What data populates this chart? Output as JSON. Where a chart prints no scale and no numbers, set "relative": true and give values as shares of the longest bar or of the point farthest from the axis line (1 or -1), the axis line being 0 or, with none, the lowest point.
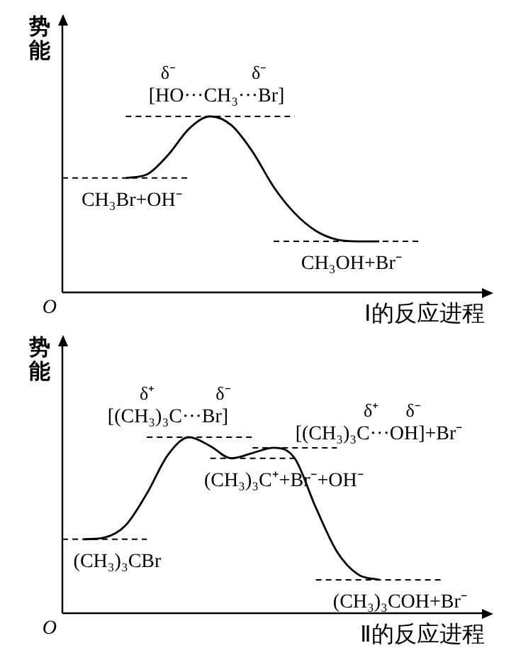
{
  "chart_data": [
    {
      "type": "line",
      "relative": true,
      "ylabel": "势能",
      "xlabel": "Ⅰ的反应进程",
      "categories": [
        null,
        null,
        null,
        null,
        null,
        null,
        null,
        null,
        null,
        null,
        null,
        null,
        null,
        null,
        null,
        null,
        null,
        null,
        null,
        null,
        null
      ],
      "marker": "none",
      "series": [
        {
          "color": "#000000",
          "line_style": "solid",
          "values": [
            null,
            null,
            null,
            0.65,
            0.67,
            0.78,
            0.93,
            1.0,
            0.95,
            0.8,
            0.6,
            0.45,
            0.35,
            0.3,
            0.29,
            0.29,
            null,
            null,
            null,
            null,
            null
          ]
        },
        {
          "color": "#000000",
          "line_style": "dashed",
          "values": [
            0.65,
            0.65,
            0.65,
            0.65,
            0.65,
            0.65,
            0.65,
            null,
            null,
            null,
            null,
            null,
            null,
            null,
            null,
            null,
            null,
            null,
            null,
            null,
            null
          ]
        },
        {
          "color": "#000000",
          "line_style": "dashed",
          "values": [
            null,
            null,
            null,
            1.0,
            1.0,
            1.0,
            1.0,
            1.0,
            1.0,
            1.0,
            1.0,
            1.0,
            null,
            null,
            null,
            null,
            null,
            null,
            null,
            null,
            null
          ]
        },
        {
          "color": "#000000",
          "line_style": "dashed",
          "values": [
            null,
            null,
            null,
            null,
            null,
            null,
            null,
            null,
            null,
            null,
            0.29,
            0.29,
            0.29,
            0.29,
            0.29,
            0.29,
            0.29,
            0.29,
            null,
            null,
            null
          ]
        }
      ],
      "annotations": [
        {
          "text": "δ⁻",
          "y": 1.0
        },
        {
          "text": "δ⁻",
          "y": 1.0
        },
        {
          "text": "[HO···CH₃···Br]",
          "y": 1.0
        },
        {
          "text": "CH₃Br+OH⁻",
          "y": 0.65
        },
        {
          "text": "CH₃OH+Br⁻",
          "y": 0.29
        },
        "O"
      ]
    },
    {
      "type": "line",
      "relative": true,
      "ylabel": "势能",
      "xlabel": "Ⅱ的反应进程",
      "categories": [
        null,
        null,
        null,
        null,
        null,
        null,
        null,
        null,
        null,
        null,
        null,
        null,
        null,
        null,
        null,
        null,
        null,
        null,
        null,
        null,
        null
      ],
      "marker": "none",
      "series": [
        {
          "color": "#000000",
          "line_style": "solid",
          "values": [
            null,
            0.42,
            0.43,
            0.5,
            0.68,
            0.9,
            1.0,
            0.95,
            0.88,
            0.91,
            0.94,
            0.88,
            0.6,
            0.35,
            0.22,
            0.19,
            null,
            null,
            null,
            null,
            null
          ]
        },
        {
          "color": "#000000",
          "line_style": "dashed",
          "values": [
            0.42,
            0.42,
            0.42,
            0.42,
            0.42,
            null,
            null,
            null,
            null,
            null,
            null,
            null,
            null,
            null,
            null,
            null,
            null,
            null,
            null,
            null,
            null
          ]
        },
        {
          "color": "#000000",
          "line_style": "dashed",
          "values": [
            null,
            null,
            null,
            null,
            1.0,
            1.0,
            1.0,
            1.0,
            1.0,
            1.0,
            null,
            null,
            null,
            null,
            null,
            null,
            null,
            null,
            null,
            null,
            null
          ]
        },
        {
          "color": "#000000",
          "line_style": "dashed",
          "values": [
            null,
            null,
            null,
            null,
            null,
            null,
            null,
            0.88,
            0.88,
            0.88,
            0.88,
            0.88,
            null,
            null,
            null,
            null,
            null,
            null,
            null,
            null,
            null
          ]
        },
        {
          "color": "#000000",
          "line_style": "dashed",
          "values": [
            null,
            null,
            null,
            null,
            null,
            null,
            null,
            null,
            null,
            0.94,
            0.94,
            0.94,
            0.94,
            0.94,
            null,
            null,
            null,
            null,
            null,
            null,
            null
          ]
        },
        {
          "color": "#000000",
          "line_style": "dashed",
          "values": [
            null,
            null,
            null,
            null,
            null,
            null,
            null,
            null,
            null,
            null,
            null,
            null,
            0.19,
            0.19,
            0.19,
            0.19,
            0.19,
            0.19,
            0.19,
            null,
            null
          ]
        }
      ],
      "annotations": [
        {
          "text": "δ⁺",
          "y": 1.0
        },
        {
          "text": "δ⁻",
          "y": 1.0
        },
        {
          "text": "[(CH₃)₃C···Br]",
          "y": 1.0
        },
        "δ⁺",
        "δ⁻",
        "[(CH₃)₃C···OH]+Br⁻",
        {
          "text": "(CH₃)₃C⁺+Br⁻+OH⁻",
          "y": 0.88
        },
        {
          "text": "(CH₃)₃CBr",
          "y": 0.42
        },
        {
          "text": "(CH₃)₃COH+Br⁻",
          "y": 0.19
        },
        "O"
      ]
    }
  ]
}
